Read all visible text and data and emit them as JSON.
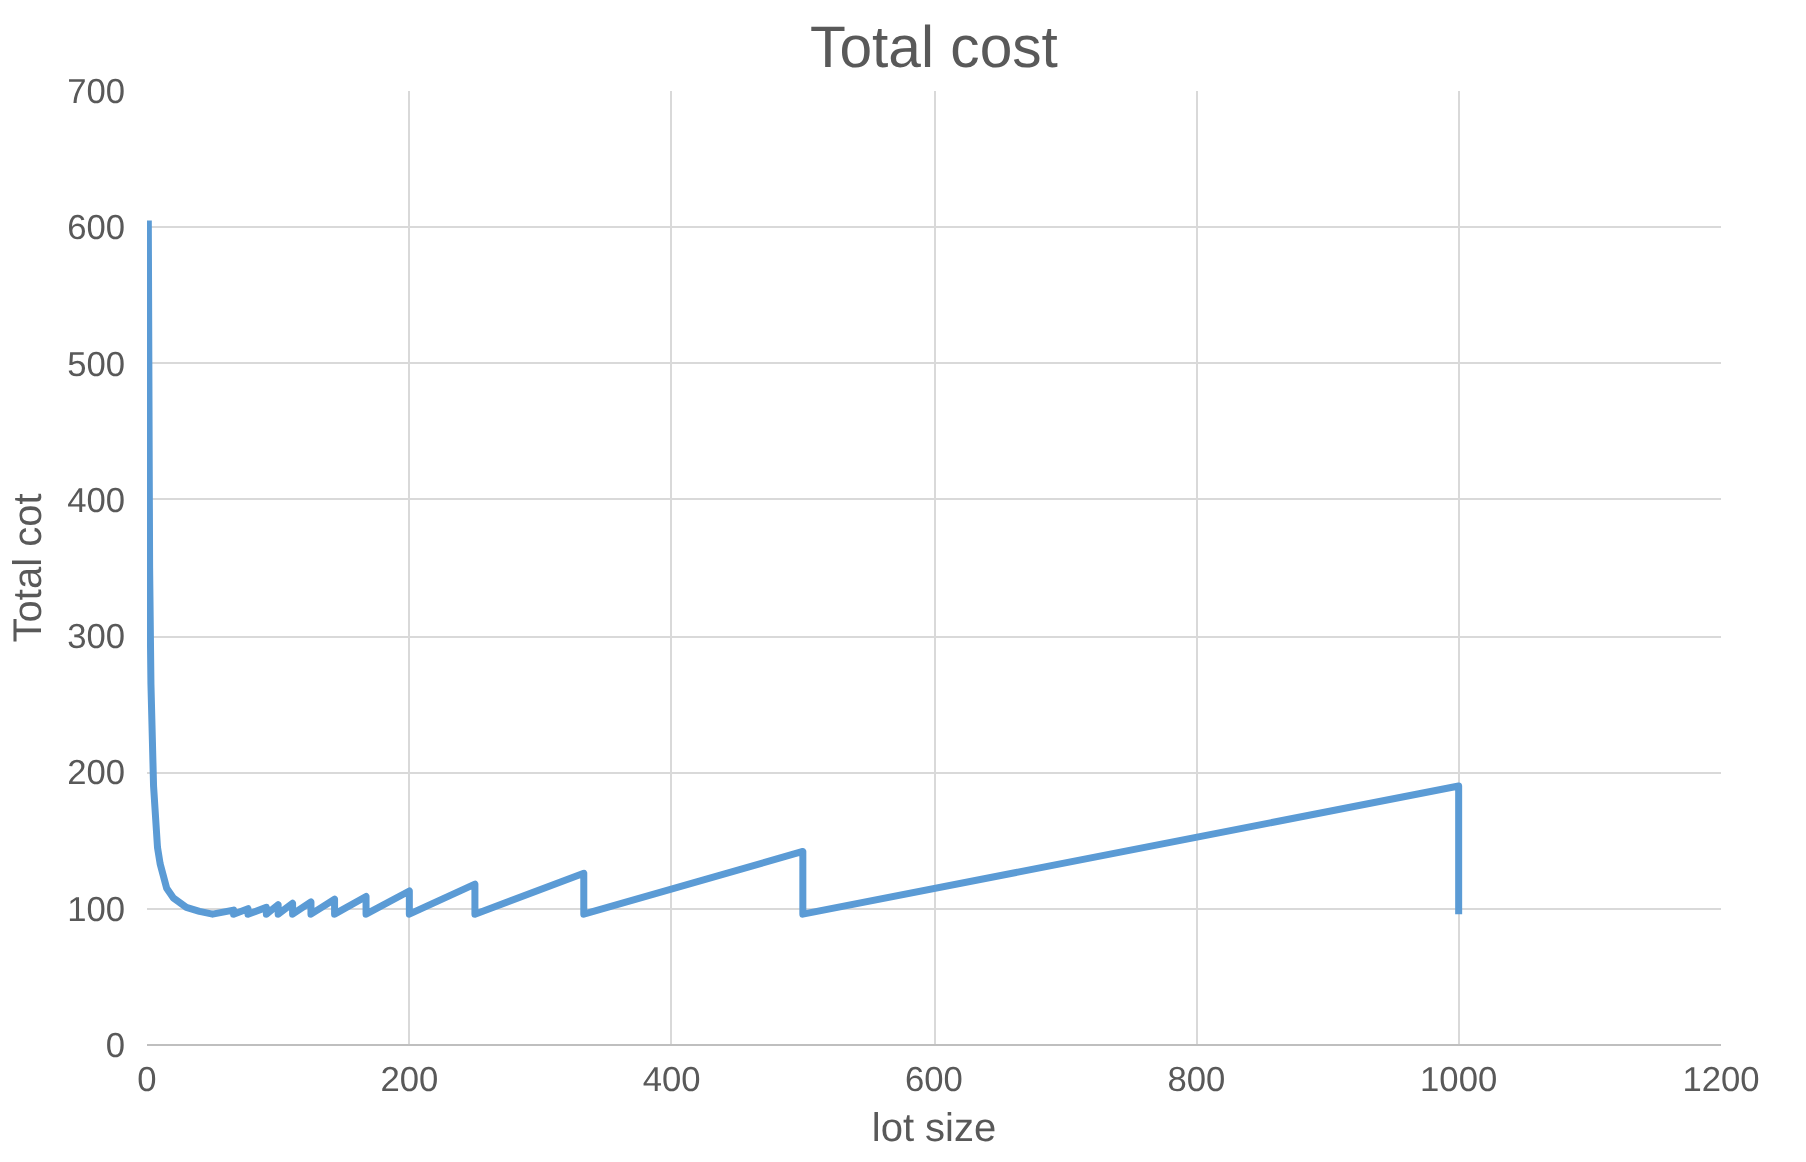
{
  "chart_data": {
    "type": "line",
    "title": "Total cost",
    "xlabel": "lot size",
    "ylabel": "Total cot",
    "x": [
      1,
      2,
      3,
      5,
      8,
      10,
      15,
      20,
      30,
      40,
      50,
      66,
      66,
      77,
      77,
      91,
      91,
      100,
      100,
      111,
      111,
      125,
      125,
      143,
      143,
      167,
      167,
      200,
      200,
      250,
      250,
      333,
      333,
      500,
      500,
      1000,
      1000
    ],
    "series": [
      {
        "color": "#5b9bd5",
        "values": [
          605,
          350,
          265,
          190,
          145,
          133,
          115,
          108,
          101,
          98,
          96,
          99,
          96,
          100,
          96,
          101,
          96,
          103,
          96,
          104,
          96,
          105,
          96,
          107,
          96,
          109,
          96,
          113,
          96,
          118,
          96,
          126,
          96,
          142,
          96,
          190,
          96
        ]
      }
    ],
    "xlim": [
      0,
      1200
    ],
    "xticks": [
      0,
      200,
      400,
      600,
      800,
      1000,
      1200
    ],
    "ylim": [
      0,
      700
    ],
    "yticks": [
      0,
      100,
      200,
      300,
      400,
      500,
      600,
      700
    ],
    "grid": true
  }
}
